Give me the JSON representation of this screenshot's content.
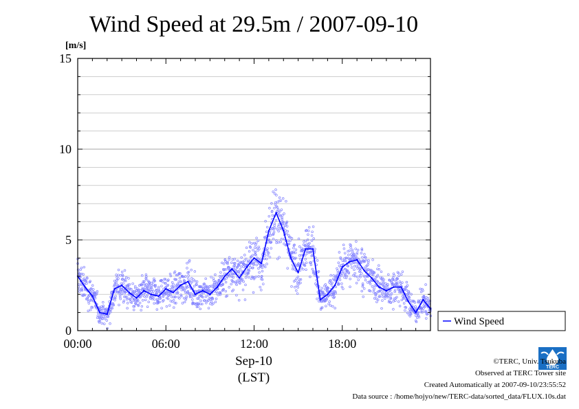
{
  "title": "Wind Speed at 29.5m / 2007-09-10",
  "unit_label": "[m/s]",
  "x_axis": {
    "date_label": "Sep-10",
    "tz_label": "(LST)"
  },
  "legend": {
    "label": "Wind Speed"
  },
  "footer": {
    "copyright": "©TERC, Univ. Tsukuba",
    "observed": "Observed at TERC Tower site",
    "created": "Created Automatically at 2007-09-10/23:55:52",
    "source": "Data source : /home/hojyo/new/TERC-data/sorted_data/FLUX.10s.dat"
  },
  "logo": {
    "text": "TERC",
    "icon": "terc-logo-icon"
  },
  "colors": {
    "line": "#0000ff",
    "scatter": "#8080ff",
    "grid": "#b0b0b0"
  },
  "chart_data": {
    "type": "line",
    "title": "Wind Speed at 29.5m / 2007-09-10",
    "ylabel": "[m/s]",
    "xlabel": "Sep-10 (LST)",
    "ylim": [
      0,
      15
    ],
    "xlim": [
      "00:00",
      "24:00"
    ],
    "x_ticks": [
      "00:00",
      "06:00",
      "12:00",
      "18:00"
    ],
    "y_ticks": [
      0,
      5,
      10,
      15
    ],
    "grid": true,
    "legend_position": "right",
    "series": [
      {
        "name": "Wind Speed",
        "style": "line",
        "x": [
          "00:00",
          "00:30",
          "01:00",
          "01:30",
          "02:00",
          "02:30",
          "03:00",
          "03:30",
          "04:00",
          "04:30",
          "05:00",
          "05:30",
          "06:00",
          "06:30",
          "07:00",
          "07:30",
          "08:00",
          "08:30",
          "09:00",
          "09:30",
          "10:00",
          "10:30",
          "11:00",
          "11:30",
          "12:00",
          "12:30",
          "13:00",
          "13:30",
          "14:00",
          "14:30",
          "15:00",
          "15:30",
          "16:00",
          "16:30",
          "17:00",
          "17:30",
          "18:00",
          "18:30",
          "19:00",
          "19:30",
          "20:00",
          "20:30",
          "21:00",
          "21:30",
          "22:00",
          "22:30",
          "23:00",
          "23:30",
          "24:00"
        ],
        "values": [
          3.0,
          2.4,
          1.9,
          1.0,
          0.9,
          2.3,
          2.5,
          2.1,
          1.8,
          2.2,
          2.0,
          1.9,
          2.3,
          2.1,
          2.5,
          2.7,
          2.0,
          2.2,
          2.0,
          2.4,
          3.0,
          3.4,
          2.9,
          3.5,
          4.0,
          3.7,
          5.5,
          6.5,
          5.5,
          4.0,
          3.2,
          4.5,
          4.5,
          1.7,
          2.0,
          2.5,
          3.5,
          3.8,
          3.9,
          3.3,
          2.9,
          2.4,
          2.2,
          2.4,
          2.4,
          1.6,
          1.0,
          1.7,
          1.2
        ]
      }
    ]
  }
}
